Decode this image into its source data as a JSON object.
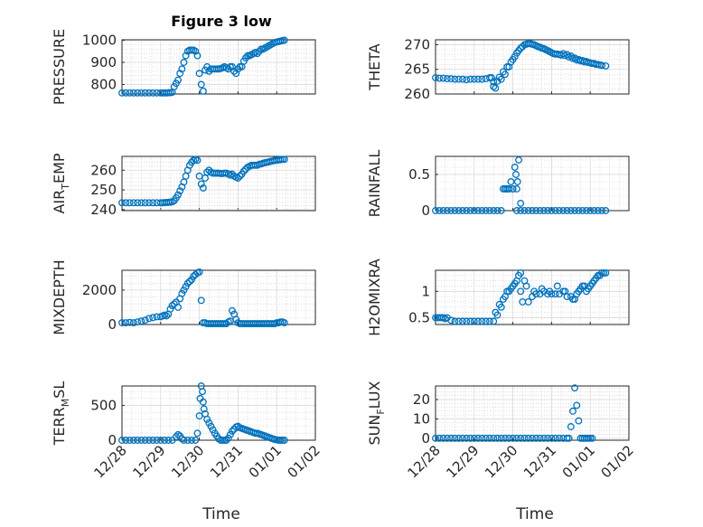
{
  "figure": {
    "title": "Figure 3 low",
    "marker_color": "#0072BD"
  },
  "chart_data": [
    {
      "type": "scatter",
      "title": "Figure 3 low",
      "ylabel": "PRESSURE",
      "xlabel": "",
      "xlim": [
        "12/28",
        "01/02"
      ],
      "ylim": [
        757,
        1002
      ],
      "yticks": [
        800,
        900,
        1000
      ],
      "xticks": [
        "12/28",
        "12/29",
        "12/30",
        "12/31",
        "01/01",
        "01/02"
      ],
      "x": [
        0.0,
        0.1,
        0.2,
        0.3,
        0.4,
        0.5,
        0.6,
        0.7,
        0.8,
        0.9,
        1.0,
        1.05,
        1.1,
        1.15,
        1.2,
        1.25,
        1.3,
        1.35,
        1.4,
        1.45,
        1.5,
        1.55,
        1.6,
        1.65,
        1.7,
        1.75,
        1.8,
        1.85,
        1.9,
        1.95,
        2.0,
        2.05,
        2.1,
        2.15,
        2.2,
        2.25,
        2.3,
        2.35,
        2.4,
        2.45,
        2.5,
        2.55,
        2.6,
        2.65,
        2.7,
        2.75,
        2.8,
        2.85,
        2.9,
        2.95,
        3.0,
        3.05,
        3.1,
        3.15,
        3.2,
        3.25,
        3.3,
        3.35,
        3.4,
        3.45,
        3.5,
        3.55,
        3.6,
        3.65,
        3.7,
        3.75,
        3.8,
        3.85,
        3.9,
        3.95,
        4.0,
        4.05,
        4.1,
        4.15,
        4.2
      ],
      "y": [
        762,
        762,
        762,
        762,
        762,
        762,
        762,
        762,
        762,
        762,
        762,
        762,
        762,
        762,
        763,
        763,
        765,
        790,
        805,
        820,
        850,
        870,
        900,
        930,
        950,
        955,
        955,
        955,
        950,
        930,
        850,
        800,
        770,
        865,
        880,
        860,
        870,
        870,
        870,
        870,
        870,
        872,
        875,
        880,
        875,
        870,
        880,
        880,
        860,
        850,
        870,
        880,
        880,
        905,
        920,
        930,
        930,
        935,
        940,
        945,
        940,
        950,
        960,
        960,
        965,
        970,
        975,
        980,
        985,
        990,
        992,
        994,
        996,
        998,
        1000
      ]
    },
    {
      "type": "scatter",
      "title": "",
      "ylabel": "THETA",
      "xlabel": "",
      "xlim": [
        "12/28",
        "01/02"
      ],
      "ylim": [
        260,
        271
      ],
      "yticks": [
        260,
        265,
        270
      ],
      "xticks": [
        "12/28",
        "12/29",
        "12/30",
        "12/31",
        "01/01",
        "01/02"
      ],
      "x": [
        0.0,
        0.1,
        0.2,
        0.3,
        0.4,
        0.5,
        0.6,
        0.7,
        0.8,
        0.9,
        1.0,
        1.1,
        1.2,
        1.3,
        1.4,
        1.5,
        1.6,
        1.7,
        1.8,
        1.9,
        2.0,
        2.1,
        2.2,
        2.3,
        2.4,
        2.5,
        2.6,
        2.7,
        2.8,
        2.9,
        3.0,
        3.1,
        3.2,
        3.3,
        3.4,
        3.5,
        3.6,
        3.7,
        3.8,
        3.9,
        4.0,
        4.1,
        4.2,
        4.3,
        4.4,
        1.5,
        1.55,
        1.45,
        1.65,
        1.75,
        1.85,
        1.95,
        2.05,
        2.15,
        2.25,
        2.35,
        2.45,
        2.55,
        2.65,
        2.75,
        2.85,
        2.95,
        3.05,
        3.15,
        3.25,
        3.35,
        3.45,
        3.55,
        3.65,
        3.75,
        3.85,
        3.95,
        4.05,
        4.15,
        4.25
      ],
      "y": [
        263.3,
        263.2,
        263.2,
        263.1,
        263.1,
        263.0,
        263.0,
        263.0,
        262.9,
        263.0,
        263.0,
        263.0,
        263.0,
        263.1,
        263.3,
        262.5,
        262.6,
        263.0,
        264.0,
        265.5,
        267.0,
        268.3,
        269.3,
        270.0,
        270.3,
        270.1,
        269.8,
        269.5,
        269.2,
        268.8,
        268.4,
        268.1,
        268.0,
        268.2,
        268.0,
        267.7,
        267.3,
        267.0,
        266.8,
        266.6,
        266.3,
        266.2,
        266.0,
        265.8,
        265.7,
        261.5,
        261.2,
        263.3,
        263.4,
        264.5,
        265.5,
        266.5,
        267.6,
        268.8,
        269.6,
        270.1,
        270.2,
        270.0,
        269.6,
        269.3,
        269.0,
        268.6,
        268.2,
        268.1,
        267.9,
        267.8,
        267.5,
        267.2,
        266.9,
        266.7,
        266.5,
        266.4,
        266.2,
        266.0,
        265.9
      ]
    },
    {
      "type": "scatter",
      "title": "",
      "ylabel": "AIR_TEMP",
      "xlabel": "",
      "xlim": [
        "12/28",
        "01/02"
      ],
      "ylim": [
        239.5,
        267
      ],
      "yticks": [
        240,
        250,
        260
      ],
      "xticks": [
        "12/28",
        "12/29",
        "12/30",
        "12/31",
        "01/01",
        "01/02"
      ],
      "x": [
        0.0,
        0.1,
        0.2,
        0.3,
        0.4,
        0.5,
        0.6,
        0.7,
        0.8,
        0.9,
        1.0,
        1.05,
        1.1,
        1.15,
        1.2,
        1.25,
        1.3,
        1.35,
        1.4,
        1.45,
        1.5,
        1.55,
        1.6,
        1.65,
        1.7,
        1.75,
        1.8,
        1.85,
        1.9,
        1.95,
        2.0,
        2.05,
        2.1,
        2.15,
        2.2,
        2.25,
        2.3,
        2.35,
        2.4,
        2.45,
        2.5,
        2.55,
        2.6,
        2.65,
        2.7,
        2.75,
        2.8,
        2.85,
        2.9,
        2.95,
        3.0,
        3.05,
        3.1,
        3.15,
        3.2,
        3.25,
        3.3,
        3.35,
        3.4,
        3.45,
        3.5,
        3.55,
        3.6,
        3.65,
        3.7,
        3.75,
        3.8,
        3.85,
        3.9,
        3.95,
        4.0,
        4.05,
        4.1,
        4.15,
        4.2
      ],
      "y": [
        243.5,
        243.5,
        243.5,
        243.5,
        243.5,
        243.5,
        243.5,
        243.5,
        243.5,
        243.5,
        243.5,
        243.5,
        243.6,
        243.6,
        243.7,
        243.8,
        244.0,
        244.5,
        246.0,
        247.5,
        249.5,
        251.5,
        254.0,
        257.0,
        260.0,
        262.5,
        264.0,
        265.0,
        265.5,
        265.0,
        257.0,
        253.0,
        251.0,
        256.0,
        259.0,
        260.0,
        259.0,
        258.5,
        258.5,
        258.5,
        258.5,
        258.3,
        258.3,
        258.5,
        258.5,
        258.0,
        257.5,
        258.0,
        257.0,
        256.5,
        256.0,
        257.0,
        258.0,
        259.5,
        260.5,
        261.5,
        262.0,
        262.5,
        262.5,
        262.5,
        262.5,
        263.0,
        263.2,
        263.5,
        263.8,
        264.0,
        264.2,
        264.5,
        264.7,
        265.0,
        265.0,
        265.2,
        265.3,
        265.5,
        265.5
      ]
    },
    {
      "type": "scatter",
      "title": "",
      "ylabel": "RAINFALL",
      "xlabel": "",
      "xlim": [
        "12/28",
        "01/02"
      ],
      "ylim": [
        0,
        0.75
      ],
      "yticks": [
        0,
        0.5
      ],
      "xticks": [
        "12/28",
        "12/29",
        "12/30",
        "12/31",
        "01/01",
        "01/02"
      ],
      "x": [
        0.0,
        0.1,
        0.2,
        0.3,
        0.4,
        0.5,
        0.6,
        0.7,
        0.8,
        0.9,
        1.0,
        1.1,
        1.2,
        1.3,
        1.4,
        1.5,
        1.6,
        1.7,
        1.8,
        1.9,
        2.0,
        2.1,
        2.2,
        2.3,
        2.4,
        2.5,
        2.6,
        2.7,
        2.8,
        2.9,
        3.0,
        3.1,
        3.2,
        3.3,
        3.4,
        3.5,
        3.6,
        3.7,
        3.8,
        3.9,
        4.0,
        4.1,
        4.2,
        4.3,
        4.4,
        1.75,
        1.8,
        1.85,
        1.9,
        1.95,
        2.0,
        2.05,
        2.08,
        2.1,
        2.12,
        2.15,
        2.2
      ],
      "y": [
        0,
        0,
        0,
        0,
        0,
        0,
        0,
        0,
        0,
        0,
        0,
        0,
        0,
        0,
        0,
        0,
        0,
        0,
        0.3,
        0.3,
        0.3,
        0,
        0,
        0,
        0,
        0,
        0,
        0,
        0,
        0,
        0,
        0,
        0,
        0,
        0,
        0,
        0,
        0,
        0,
        0,
        0,
        0,
        0,
        0,
        0,
        0.3,
        0.3,
        0.3,
        0.3,
        0.4,
        0.3,
        0.6,
        0.5,
        0.3,
        0.4,
        0.7,
        0.1
      ]
    },
    {
      "type": "scatter",
      "title": "",
      "ylabel": "MIXDEPTH",
      "xlabel": "",
      "xlim": [
        "12/28",
        "01/02"
      ],
      "ylim": [
        0,
        3150
      ],
      "yticks": [
        0,
        2000
      ],
      "xticks": [
        "12/28",
        "12/29",
        "12/30",
        "12/31",
        "01/01",
        "01/02"
      ],
      "x": [
        0.0,
        0.1,
        0.2,
        0.3,
        0.4,
        0.5,
        0.6,
        0.7,
        0.8,
        0.9,
        1.0,
        1.05,
        1.1,
        1.15,
        1.2,
        1.25,
        1.3,
        1.35,
        1.4,
        1.45,
        1.5,
        1.55,
        1.6,
        1.65,
        1.7,
        1.75,
        1.8,
        1.85,
        1.9,
        1.95,
        2.0,
        2.05,
        2.1,
        2.15,
        2.2,
        2.25,
        2.3,
        2.35,
        2.4,
        2.45,
        2.5,
        2.55,
        2.6,
        2.65,
        2.7,
        2.75,
        2.8,
        2.85,
        2.9,
        2.95,
        3.0,
        3.05,
        3.1,
        3.15,
        3.2,
        3.25,
        3.3,
        3.35,
        3.4,
        3.45,
        3.5,
        3.55,
        3.6,
        3.65,
        3.7,
        3.75,
        3.8,
        3.85,
        3.9,
        3.95,
        4.0,
        4.05,
        4.1,
        4.15,
        4.2
      ],
      "y": [
        100,
        100,
        120,
        100,
        150,
        200,
        250,
        350,
        400,
        450,
        450,
        500,
        550,
        500,
        600,
        900,
        1100,
        1200,
        1300,
        1000,
        1500,
        1800,
        2000,
        2200,
        2400,
        2500,
        2600,
        2800,
        2900,
        3000,
        3050,
        1400,
        100,
        100,
        50,
        50,
        50,
        50,
        50,
        50,
        50,
        50,
        50,
        50,
        50,
        150,
        200,
        800,
        600,
        300,
        100,
        50,
        50,
        50,
        50,
        50,
        50,
        50,
        50,
        50,
        50,
        50,
        50,
        50,
        50,
        50,
        50,
        50,
        50,
        50,
        100,
        100,
        150,
        150,
        100
      ]
    },
    {
      "type": "scatter",
      "title": "",
      "ylabel": "H2OMIXRA",
      "xlabel": "",
      "xlim": [
        "12/28",
        "01/02"
      ],
      "ylim": [
        0.37,
        1.4
      ],
      "yticks": [
        0.5,
        1
      ],
      "xticks": [
        "12/28",
        "12/29",
        "12/30",
        "12/31",
        "01/01",
        "01/02"
      ],
      "x": [
        0.0,
        0.1,
        0.2,
        0.3,
        0.4,
        0.5,
        0.6,
        0.7,
        0.8,
        0.9,
        1.0,
        1.1,
        1.2,
        1.3,
        1.4,
        1.5,
        1.6,
        1.7,
        1.8,
        1.9,
        2.0,
        2.1,
        2.2,
        2.3,
        2.4,
        2.5,
        2.6,
        2.7,
        2.8,
        2.9,
        3.0,
        3.1,
        3.2,
        3.3,
        3.4,
        3.5,
        3.6,
        3.7,
        3.8,
        3.9,
        4.0,
        4.1,
        4.2,
        4.3,
        4.4,
        0.05,
        0.15,
        0.25,
        1.55,
        1.65,
        1.75,
        1.85,
        1.95,
        2.05,
        2.15,
        2.2,
        2.25,
        2.35,
        2.55,
        2.75,
        2.95,
        3.15,
        3.35,
        3.55,
        3.65,
        3.75,
        3.85,
        3.95,
        4.05,
        4.15,
        4.25,
        4.35
      ],
      "y": [
        0.5,
        0.5,
        0.5,
        0.5,
        0.45,
        0.43,
        0.43,
        0.43,
        0.43,
        0.43,
        0.43,
        0.43,
        0.43,
        0.43,
        0.43,
        0.43,
        0.55,
        0.7,
        0.9,
        1.0,
        1.1,
        1.2,
        1.35,
        1.2,
        0.8,
        0.9,
        0.95,
        0.95,
        1.0,
        0.95,
        0.95,
        0.95,
        0.95,
        1.0,
        0.9,
        0.9,
        0.85,
        1.0,
        1.1,
        1.0,
        1.1,
        1.2,
        1.3,
        1.35,
        1.35,
        0.5,
        0.5,
        0.48,
        0.6,
        0.75,
        0.85,
        1.0,
        1.05,
        1.15,
        1.3,
        1.0,
        0.8,
        1.1,
        1.0,
        1.05,
        1.0,
        1.1,
        1.0,
        0.85,
        0.95,
        1.05,
        1.1,
        1.05,
        1.15,
        1.25,
        1.3,
        1.35
      ]
    },
    {
      "type": "scatter",
      "title": "",
      "ylabel": "TERR_MSL",
      "xlabel": "Time",
      "xlim": [
        "12/28",
        "01/02"
      ],
      "ylim": [
        0,
        780
      ],
      "yticks": [
        0,
        500
      ],
      "xticks": [
        "12/28",
        "12/29",
        "12/30",
        "12/31",
        "01/01",
        "01/02"
      ],
      "x": [
        0.0,
        0.1,
        0.2,
        0.3,
        0.4,
        0.5,
        0.6,
        0.7,
        0.8,
        0.9,
        1.0,
        1.1,
        1.2,
        1.3,
        1.4,
        1.45,
        1.5,
        1.55,
        1.6,
        1.7,
        1.8,
        1.9,
        1.95,
        2.0,
        2.02,
        2.05,
        2.08,
        2.1,
        2.12,
        2.15,
        2.2,
        2.25,
        2.3,
        2.35,
        2.4,
        2.45,
        2.5,
        2.55,
        2.6,
        2.65,
        2.7,
        2.75,
        2.8,
        2.85,
        2.9,
        2.95,
        3.0,
        3.05,
        3.1,
        3.15,
        3.2,
        3.25,
        3.3,
        3.35,
        3.4,
        3.45,
        3.5,
        3.55,
        3.6,
        3.65,
        3.7,
        3.75,
        3.8,
        3.85,
        3.9,
        3.95,
        4.0,
        4.05,
        4.1,
        4.15,
        4.2
      ],
      "y": [
        0,
        0,
        0,
        0,
        0,
        0,
        0,
        0,
        0,
        0,
        0,
        0,
        0,
        0,
        50,
        80,
        60,
        20,
        0,
        0,
        0,
        0,
        100,
        350,
        600,
        780,
        700,
        550,
        450,
        380,
        300,
        250,
        200,
        150,
        100,
        60,
        20,
        0,
        0,
        0,
        0,
        30,
        80,
        130,
        160,
        190,
        200,
        180,
        170,
        160,
        150,
        140,
        130,
        120,
        110,
        100,
        100,
        90,
        80,
        70,
        60,
        50,
        40,
        30,
        20,
        10,
        5,
        0,
        0,
        0,
        0
      ]
    },
    {
      "type": "scatter",
      "title": "",
      "ylabel": "SUN_FLUX",
      "xlabel": "Time",
      "xlim": [
        "12/28",
        "01/02"
      ],
      "ylim": [
        -1,
        27
      ],
      "yticks": [
        0,
        10,
        20
      ],
      "xticks": [
        "12/28",
        "12/29",
        "12/30",
        "12/31",
        "01/01",
        "01/02"
      ],
      "x": [
        0.0,
        0.1,
        0.2,
        0.3,
        0.4,
        0.5,
        0.6,
        0.7,
        0.8,
        0.9,
        1.0,
        1.1,
        1.2,
        1.3,
        1.4,
        1.5,
        1.6,
        1.7,
        1.8,
        1.9,
        2.0,
        2.1,
        2.2,
        2.3,
        2.4,
        2.5,
        2.6,
        2.7,
        2.8,
        2.9,
        3.0,
        3.1,
        3.2,
        3.3,
        3.4,
        3.45,
        3.5,
        3.55,
        3.6,
        3.65,
        3.7,
        3.75,
        3.8,
        3.85,
        3.9,
        3.95,
        4.0,
        4.05
      ],
      "y": [
        0,
        0,
        0,
        0,
        0,
        0,
        0,
        0,
        0,
        0,
        0,
        0,
        0,
        0,
        0,
        0,
        0,
        0,
        0,
        0,
        0,
        0,
        0,
        0,
        0,
        0,
        0,
        0,
        0,
        0,
        0,
        0,
        0,
        0,
        0,
        0,
        6,
        14,
        26,
        17,
        9,
        0,
        0,
        0,
        0,
        0,
        0,
        0
      ]
    }
  ]
}
